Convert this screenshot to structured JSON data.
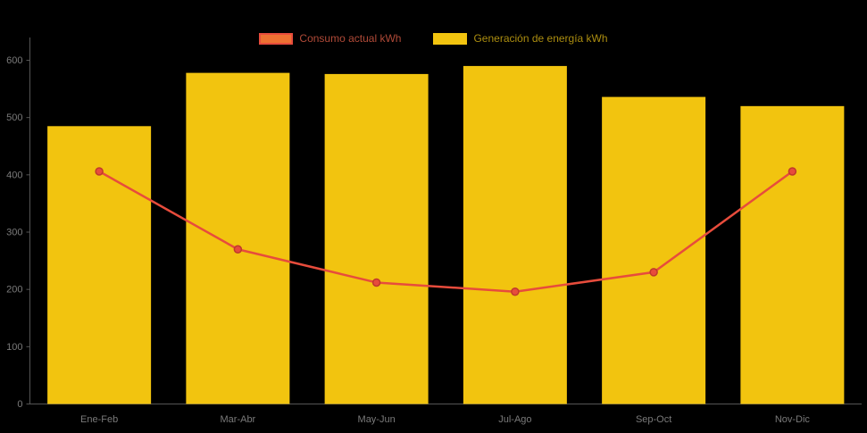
{
  "page": {
    "background": "#000000"
  },
  "legend": {
    "items": [
      {
        "label": "Consumo actual kWh",
        "swatch_fill": "#ED7132",
        "swatch_border": "#E74C3C",
        "label_color": "#B04A38"
      },
      {
        "label": "Generación de energía kWh",
        "swatch_fill": "#F2C40F",
        "swatch_border": "#F2C40F",
        "label_color": "#AB8D10"
      }
    ]
  },
  "chart_data": {
    "type": "bar",
    "title": "",
    "xlabel": "",
    "ylabel": "",
    "categories": [
      "Ene-Feb",
      "Mar-Abr",
      "May-Jun",
      "Jul-Ago",
      "Sep-Oct",
      "Nov-Dic"
    ],
    "series": [
      {
        "name": "Generación de energía kWh",
        "type": "bar",
        "color": "#F2C40F",
        "values": [
          485,
          578,
          576,
          590,
          536,
          520
        ]
      },
      {
        "name": "Consumo actual kWh",
        "type": "line",
        "color": "#E74C3C",
        "point_color": "#E74C3C",
        "point_border": "#C0392B",
        "values": [
          406,
          270,
          212,
          196,
          230,
          406
        ]
      }
    ],
    "ylim": [
      0,
      600
    ],
    "yticks": [
      0,
      100,
      200,
      300,
      400,
      500,
      600
    ],
    "legend_position": "top",
    "grid": false,
    "axis_color": "#555555",
    "tick_label_color": "#7A7A7A"
  }
}
